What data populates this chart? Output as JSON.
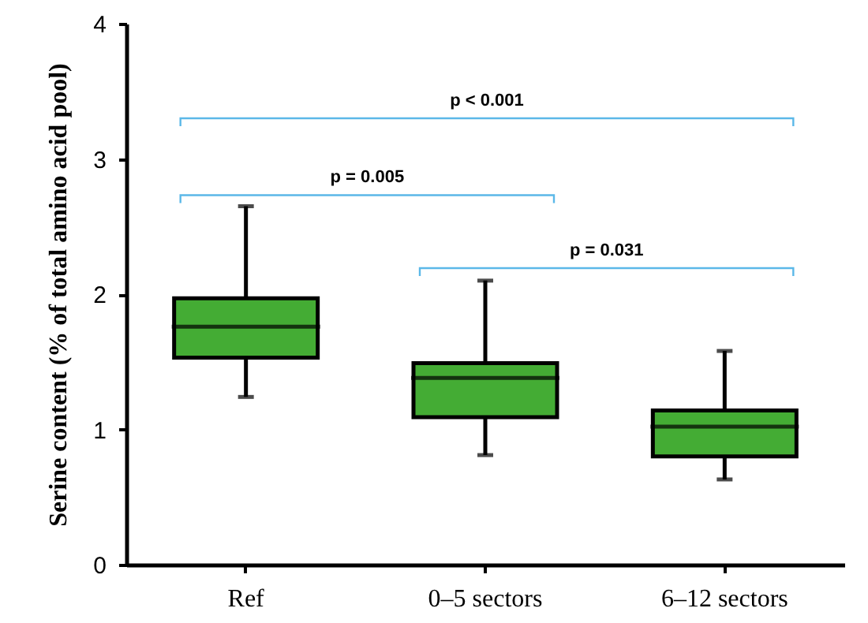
{
  "chart_data": {
    "type": "box",
    "ylabel": "Serine content (% of total amino acid pool)",
    "categories": [
      "Ref",
      "0–5 sectors",
      "6–12 sectors"
    ],
    "color": "#44ac34",
    "boxes": [
      {
        "low": 1.24,
        "q1": 1.53,
        "median": 1.76,
        "q3": 1.97,
        "high": 2.65
      },
      {
        "low": 0.81,
        "q1": 1.09,
        "median": 1.38,
        "q3": 1.49,
        "high": 2.1
      },
      {
        "low": 0.63,
        "q1": 0.8,
        "median": 1.02,
        "q3": 1.14,
        "high": 1.58
      }
    ],
    "ylim": [
      0,
      4
    ],
    "yticks": [
      0,
      1,
      2,
      3,
      4
    ],
    "grid": false,
    "annotations": [
      "p < 0.001",
      "p = 0.005",
      "p = 0.031"
    ]
  }
}
